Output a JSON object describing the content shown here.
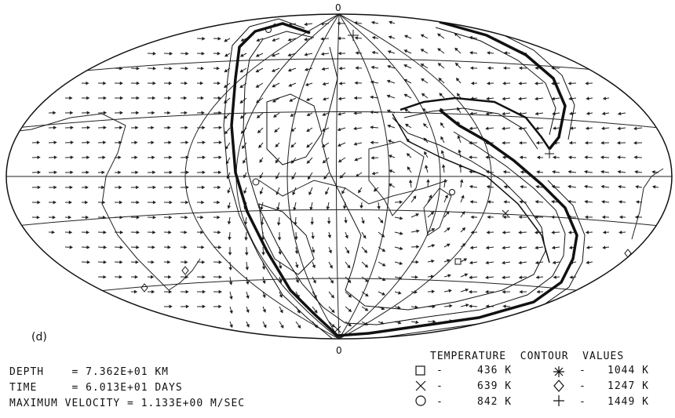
{
  "meridian_labels": {
    "top": "0",
    "bottom": "0"
  },
  "panel_label": "(d)",
  "info": {
    "depth": "DEPTH    = 7.362E+01 KM",
    "time": "TIME     = 6.013E+01 DAYS",
    "max_velocity": "MAXIMUM VELOCITY = 1.133E+00 M/SEC"
  },
  "legend": {
    "title": "TEMPERATURE  CONTOUR  VALUES",
    "entries": [
      {
        "symbol": "square-icon",
        "value": "436 K"
      },
      {
        "symbol": "cross-icon",
        "value": "639 K"
      },
      {
        "symbol": "circle-icon",
        "value": "842 K"
      },
      {
        "symbol": "asterisk-icon",
        "value": "1044 K"
      },
      {
        "symbol": "diamond-icon",
        "value": "1247 K"
      },
      {
        "symbol": "plus-icon",
        "value": "1449 K"
      }
    ],
    "dash": "-"
  }
}
